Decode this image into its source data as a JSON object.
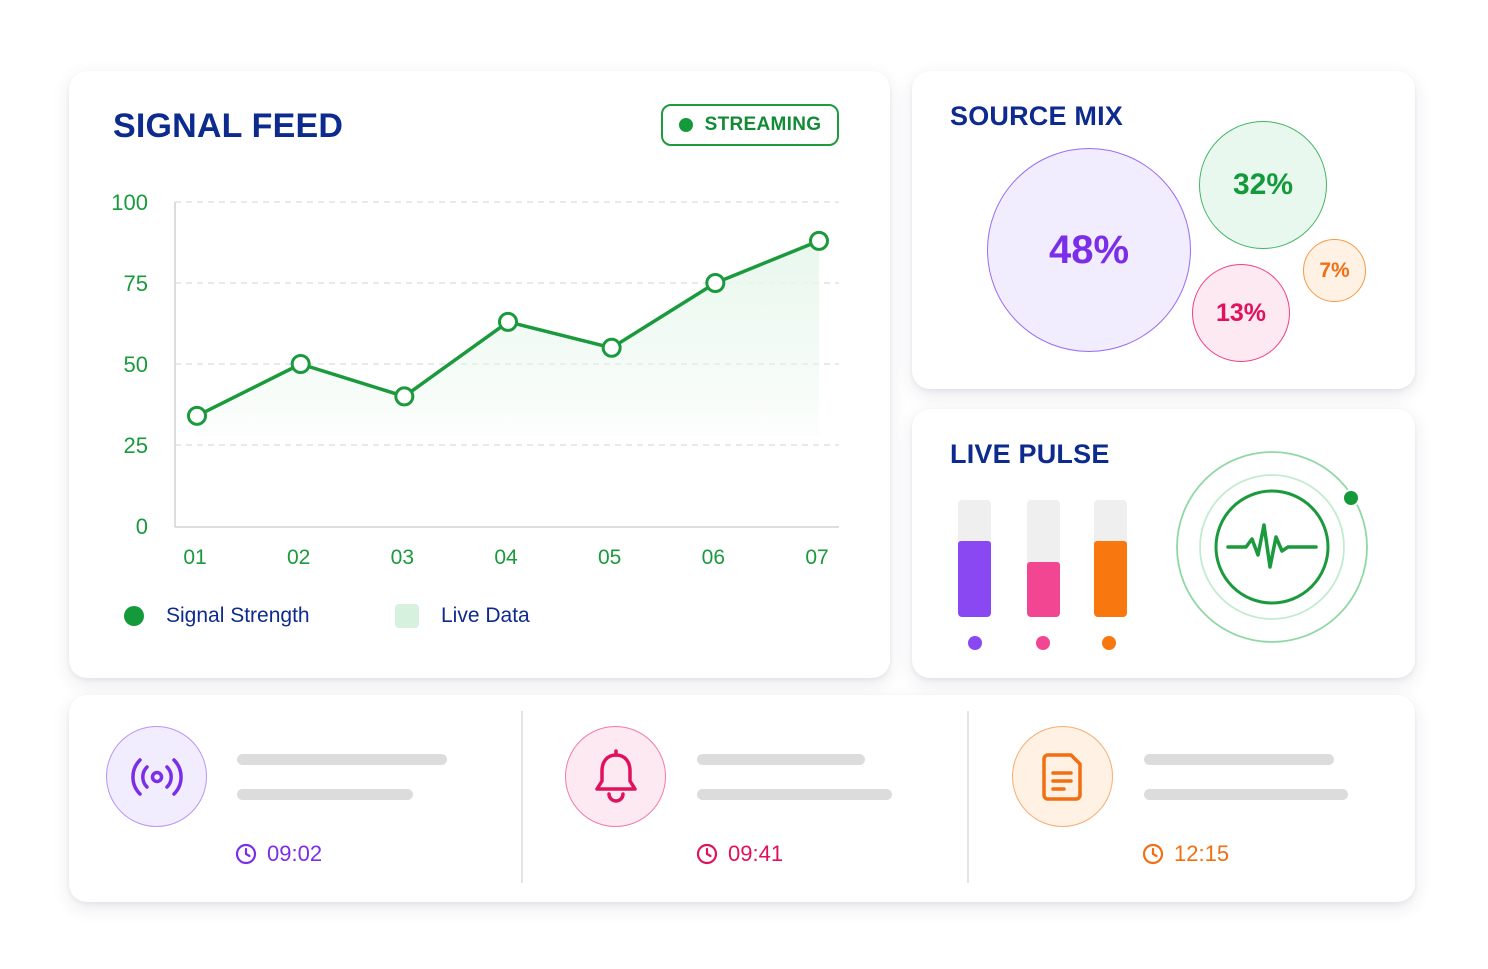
{
  "signal_feed": {
    "title": "SIGNAL FEED",
    "badge": "STREAMING",
    "legend": {
      "signal": "Signal Strength",
      "live": "Live Data"
    },
    "chart_data": {
      "type": "line",
      "x": [
        "01",
        "02",
        "03",
        "04",
        "05",
        "06",
        "07"
      ],
      "series": [
        {
          "name": "Signal Strength",
          "values": [
            34,
            50,
            40,
            63,
            55,
            75,
            88
          ]
        }
      ],
      "ylim": [
        0,
        100
      ],
      "yticks": [
        0,
        25,
        50,
        75,
        100
      ],
      "grid": true,
      "legend_position": "bottom-left",
      "colors": {
        "line": "#1a9a3c",
        "area": "#e8f7ed",
        "axis_text": "#1a9a3c"
      }
    }
  },
  "source_mix": {
    "title": "SOURCE MIX",
    "bubbles": [
      {
        "label": "48%",
        "value": 48,
        "color": "#7a2ee8"
      },
      {
        "label": "32%",
        "value": 32,
        "color": "#149a3a"
      },
      {
        "label": "13%",
        "value": 13,
        "color": "#e0125d"
      },
      {
        "label": "7%",
        "value": 7,
        "color": "#f16e12"
      }
    ]
  },
  "live_pulse": {
    "title": "LIVE PULSE",
    "bars": [
      {
        "level": 0.65,
        "color": "#8a48f2"
      },
      {
        "level": 0.47,
        "color": "#f24592"
      },
      {
        "level": 0.65,
        "color": "#f8770f"
      }
    ],
    "pulse_icon": "heartbeat-icon"
  },
  "activity": [
    {
      "icon": "broadcast-icon",
      "time": "09:02",
      "color": "#7a2ee8"
    },
    {
      "icon": "bell-icon",
      "time": "09:41",
      "color": "#e0125d"
    },
    {
      "icon": "document-icon",
      "time": "12:15",
      "color": "#f16e12"
    }
  ]
}
